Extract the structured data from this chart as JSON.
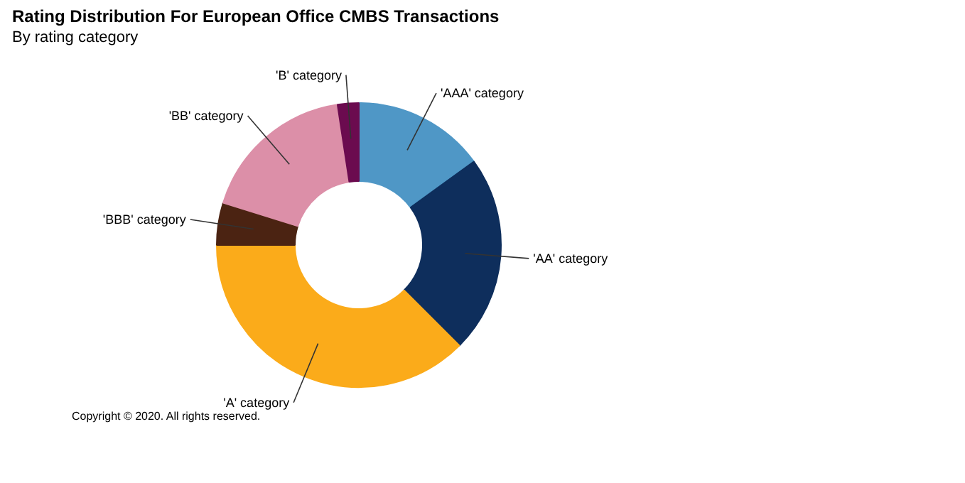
{
  "chart_data": {
    "type": "donut",
    "title": "Rating Distribution For European Office CMBS Transactions",
    "subtitle": "By rating category",
    "categories": [
      "'AAA' category",
      "'AA' category",
      "'A' category",
      "'BBB' category",
      "'BB' category",
      "'B' category"
    ],
    "values": [
      15,
      22.5,
      37.5,
      4.8,
      17.8,
      2.4
    ],
    "colors": [
      "#4f97c6",
      "#0e2e5c",
      "#fbab1a",
      "#4b2312",
      "#dc8fa8",
      "#6b0b4f"
    ],
    "annotations": [
      "Copyright © 2020. All rights reserved."
    ]
  }
}
